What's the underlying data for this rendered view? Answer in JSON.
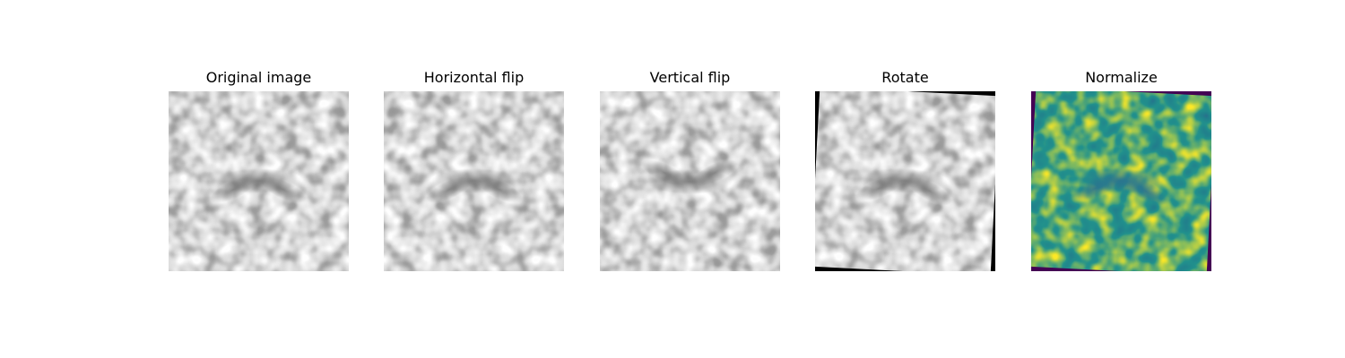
{
  "panels": [
    {
      "title": "Original image",
      "transform": "none",
      "colormap": "gray"
    },
    {
      "title": "Horizontal flip",
      "transform": "horizontal-flip",
      "colormap": "gray"
    },
    {
      "title": "Vertical flip",
      "transform": "vertical-flip",
      "colormap": "gray"
    },
    {
      "title": "Rotate",
      "transform": "rotate",
      "colormap": "gray",
      "fill": "#000000"
    },
    {
      "title": "Normalize",
      "transform": "rotate-normalize",
      "colormap": "viridis",
      "fill": "#440154"
    }
  ],
  "colors": {
    "viridis": [
      "#440154",
      "#3b528b",
      "#21918c",
      "#5ec962",
      "#fde725"
    ],
    "gray_light": "#ffffff",
    "gray_dark": "#6e6e6e"
  }
}
